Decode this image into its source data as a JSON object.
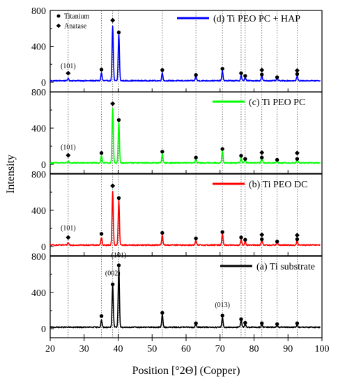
{
  "chart_data": {
    "type": "line",
    "xlabel": "Position [°2Θ] (Copper)",
    "ylabel": "Intensity",
    "xlim": [
      20,
      100
    ],
    "x_ticks": [
      20,
      30,
      40,
      50,
      60,
      70,
      80,
      90,
      100
    ],
    "y_ticks": [
      0,
      400,
      800
    ],
    "ylim": [
      0,
      800
    ],
    "reference_lines_x": [
      25.3,
      35.1,
      38.4,
      40.2,
      53.0,
      62.9,
      70.7,
      76.2,
      77.4,
      82.3,
      86.8,
      92.7
    ],
    "marker_key": [
      {
        "symbol": "circle",
        "label": "Titanium"
      },
      {
        "symbol": "diamond",
        "label": "Anatase"
      }
    ],
    "panels": [
      {
        "id": "d",
        "legend": "(d) Ti PEO PC + HAP",
        "color": "#0000ff",
        "baseline": 10,
        "peaks": [
          [
            25.3,
            25
          ],
          [
            35.1,
            90
          ],
          [
            38.4,
            610
          ],
          [
            40.2,
            530
          ],
          [
            53.0,
            90
          ],
          [
            62.9,
            50
          ],
          [
            70.7,
            110
          ],
          [
            76.2,
            60
          ],
          [
            77.4,
            40
          ],
          [
            82.3,
            55
          ],
          [
            86.8,
            25
          ],
          [
            92.7,
            55
          ]
        ],
        "titanium_markers": [
          [
            35.1,
            140
          ],
          [
            40.2,
            555
          ],
          [
            53.0,
            135
          ],
          [
            62.9,
            80
          ],
          [
            70.7,
            150
          ],
          [
            76.2,
            100
          ],
          [
            77.4,
            70
          ],
          [
            82.3,
            85
          ],
          [
            86.8,
            55
          ],
          [
            92.7,
            90
          ]
        ],
        "anatase_markers": [
          [
            25.3,
            100
          ],
          [
            38.4,
            690
          ],
          [
            82.3,
            135
          ],
          [
            92.7,
            130
          ]
        ],
        "annotations": [
          {
            "text": "(101)",
            "x": 25.3,
            "y": 155
          }
        ]
      },
      {
        "id": "c",
        "legend": "(c) Ti PEO PC",
        "color": "#00ff00",
        "baseline": 10,
        "peaks": [
          [
            25.3,
            20
          ],
          [
            35.1,
            80
          ],
          [
            38.4,
            600
          ],
          [
            40.2,
            460
          ],
          [
            53.0,
            100
          ],
          [
            62.9,
            45
          ],
          [
            70.7,
            130
          ],
          [
            76.2,
            60
          ],
          [
            77.4,
            40
          ],
          [
            82.3,
            60
          ],
          [
            86.8,
            25
          ],
          [
            92.7,
            45
          ]
        ],
        "titanium_markers": [
          [
            35.1,
            125
          ],
          [
            40.2,
            490
          ],
          [
            53.0,
            140
          ],
          [
            62.9,
            75
          ],
          [
            70.7,
            170
          ],
          [
            76.2,
            95
          ],
          [
            77.4,
            60
          ],
          [
            82.3,
            75
          ],
          [
            86.8,
            50
          ],
          [
            92.7,
            60
          ]
        ],
        "anatase_markers": [
          [
            25.3,
            100
          ],
          [
            38.4,
            670
          ],
          [
            82.3,
            130
          ],
          [
            92.7,
            125
          ]
        ],
        "annotations": [
          {
            "text": "(101)",
            "x": 25.3,
            "y": 165
          }
        ]
      },
      {
        "id": "b",
        "legend": "(b) Ti PEO DC",
        "color": "#ff0000",
        "baseline": 10,
        "peaks": [
          [
            25.3,
            25
          ],
          [
            35.1,
            85
          ],
          [
            38.4,
            590
          ],
          [
            40.2,
            500
          ],
          [
            53.0,
            110
          ],
          [
            62.9,
            50
          ],
          [
            70.7,
            130
          ],
          [
            76.2,
            60
          ],
          [
            77.4,
            45
          ],
          [
            82.3,
            60
          ],
          [
            86.8,
            30
          ],
          [
            92.7,
            50
          ]
        ],
        "titanium_markers": [
          [
            35.1,
            140
          ],
          [
            40.2,
            535
          ],
          [
            53.0,
            150
          ],
          [
            62.9,
            90
          ],
          [
            70.7,
            160
          ],
          [
            76.2,
            100
          ],
          [
            77.4,
            75
          ],
          [
            82.3,
            80
          ],
          [
            86.8,
            55
          ],
          [
            92.7,
            80
          ]
        ],
        "anatase_markers": [
          [
            25.3,
            100
          ],
          [
            38.4,
            670
          ],
          [
            82.3,
            130
          ],
          [
            92.7,
            125
          ]
        ],
        "annotations": [
          {
            "text": "(101)",
            "x": 25.3,
            "y": 180
          }
        ]
      },
      {
        "id": "a",
        "legend": "(a) Ti substrate",
        "color": "#000000",
        "baseline": 10,
        "peaks": [
          [
            35.1,
            80
          ],
          [
            38.4,
            460
          ],
          [
            40.2,
            660
          ],
          [
            53.0,
            140
          ],
          [
            62.9,
            30
          ],
          [
            70.7,
            110
          ],
          [
            76.2,
            80
          ],
          [
            77.4,
            40
          ],
          [
            82.3,
            30
          ],
          [
            86.8,
            20
          ],
          [
            92.7,
            30
          ]
        ],
        "titanium_markers": [
          [
            35.1,
            140
          ],
          [
            38.4,
            490
          ],
          [
            40.2,
            700
          ],
          [
            53.0,
            175
          ],
          [
            62.9,
            60
          ],
          [
            70.7,
            145
          ],
          [
            76.2,
            105
          ],
          [
            77.4,
            65
          ],
          [
            82.3,
            60
          ],
          [
            86.8,
            50
          ],
          [
            92.7,
            60
          ]
        ],
        "anatase_markers": [],
        "annotations": [
          {
            "text": "(002)",
            "x": 38.4,
            "y": 590
          },
          {
            "text": "(101)",
            "x": 40.2,
            "y": 790
          },
          {
            "text": "(013)",
            "x": 70.7,
            "y": 240
          }
        ]
      }
    ]
  }
}
